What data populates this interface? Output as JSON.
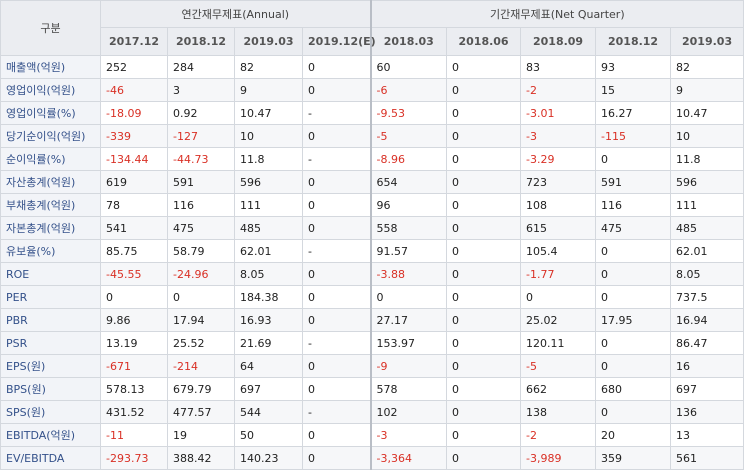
{
  "header": {
    "category_label": "구분",
    "annual_title": "연간재무제표(Annual)",
    "quarter_title": "기간재무제표(Net Quarter)",
    "annual_periods": [
      "2017.12",
      "2018.12",
      "2019.03",
      "2019.12(E)"
    ],
    "quarter_periods": [
      "2018.03",
      "2018.06",
      "2018.09",
      "2018.12",
      "2019.03"
    ]
  },
  "rows": [
    {
      "label": "매출액(억원)",
      "values": [
        "252",
        "284",
        "82",
        "0",
        "60",
        "0",
        "83",
        "93",
        "82"
      ]
    },
    {
      "label": "영업이익(억원)",
      "values": [
        "-46",
        "3",
        "9",
        "0",
        "-6",
        "0",
        "-2",
        "15",
        "9"
      ]
    },
    {
      "label": "영업이익률(%)",
      "values": [
        "-18.09",
        "0.92",
        "10.47",
        "-",
        "-9.53",
        "0",
        "-3.01",
        "16.27",
        "10.47"
      ]
    },
    {
      "label": "당기순이익(억원)",
      "values": [
        "-339",
        "-127",
        "10",
        "0",
        "-5",
        "0",
        "-3",
        "-115",
        "10"
      ]
    },
    {
      "label": "순이익률(%)",
      "values": [
        "-134.44",
        "-44.73",
        "11.8",
        "-",
        "-8.96",
        "0",
        "-3.29",
        "0",
        "11.8"
      ]
    },
    {
      "label": "자산총계(억원)",
      "values": [
        "619",
        "591",
        "596",
        "0",
        "654",
        "0",
        "723",
        "591",
        "596"
      ]
    },
    {
      "label": "부채총계(억원)",
      "values": [
        "78",
        "116",
        "111",
        "0",
        "96",
        "0",
        "108",
        "116",
        "111"
      ]
    },
    {
      "label": "자본총계(억원)",
      "values": [
        "541",
        "475",
        "485",
        "0",
        "558",
        "0",
        "615",
        "475",
        "485"
      ]
    },
    {
      "label": "유보율(%)",
      "values": [
        "85.75",
        "58.79",
        "62.01",
        "-",
        "91.57",
        "0",
        "105.4",
        "0",
        "62.01"
      ]
    },
    {
      "label": "ROE",
      "values": [
        "-45.55",
        "-24.96",
        "8.05",
        "0",
        "-3.88",
        "0",
        "-1.77",
        "0",
        "8.05"
      ]
    },
    {
      "label": "PER",
      "values": [
        "0",
        "0",
        "184.38",
        "0",
        "0",
        "0",
        "0",
        "0",
        "737.5"
      ]
    },
    {
      "label": "PBR",
      "values": [
        "9.86",
        "17.94",
        "16.93",
        "0",
        "27.17",
        "0",
        "25.02",
        "17.95",
        "16.94"
      ]
    },
    {
      "label": "PSR",
      "values": [
        "13.19",
        "25.52",
        "21.69",
        "-",
        "153.97",
        "0",
        "120.11",
        "0",
        "86.47"
      ]
    },
    {
      "label": "EPS(원)",
      "values": [
        "-671",
        "-214",
        "64",
        "0",
        "-9",
        "0",
        "-5",
        "0",
        "16"
      ]
    },
    {
      "label": "BPS(원)",
      "values": [
        "578.13",
        "679.79",
        "697",
        "0",
        "578",
        "0",
        "662",
        "680",
        "697"
      ]
    },
    {
      "label": "SPS(원)",
      "values": [
        "431.52",
        "477.57",
        "544",
        "-",
        "102",
        "0",
        "138",
        "0",
        "136"
      ]
    },
    {
      "label": "EBITDA(억원)",
      "values": [
        "-11",
        "19",
        "50",
        "0",
        "-3",
        "0",
        "-2",
        "20",
        "13"
      ]
    },
    {
      "label": "EV/EBITDA",
      "values": [
        "-293.73",
        "388.42",
        "140.23",
        "0",
        "-3,364",
        "0",
        "-3,989",
        "359",
        "561"
      ]
    }
  ],
  "colors": {
    "negative": "#d93025",
    "label": "#34518a",
    "header_bg": "#ebedf1"
  }
}
